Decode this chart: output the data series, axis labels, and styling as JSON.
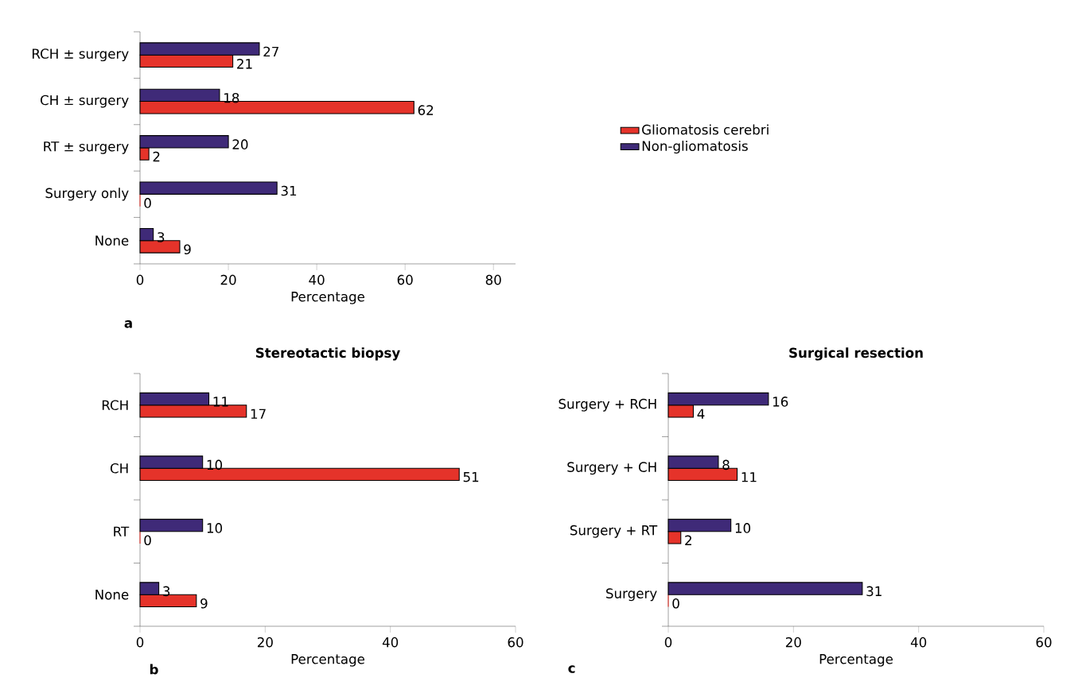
{
  "chart_data": [
    {
      "type": "bar",
      "orientation": "horizontal",
      "xlabel": "Percentage",
      "categories": [
        "RCH ± surgery",
        "CH ± surgery",
        "RT ± surgery",
        "Surgery only",
        "None"
      ],
      "series": [
        {
          "name": "Gliomatosis cerebri",
          "color": "#e5332a",
          "values": [
            21,
            62,
            2,
            0,
            9
          ]
        },
        {
          "name": "Non-gliomatosis",
          "color": "#3f2a78",
          "values": [
            27,
            18,
            20,
            31,
            3
          ]
        }
      ],
      "xlim": [
        0,
        85
      ],
      "xticks": [
        0,
        20,
        40,
        60,
        80
      ],
      "data_labels": true,
      "legend": "right",
      "annotations": [
        "a"
      ]
    },
    {
      "type": "bar",
      "orientation": "horizontal",
      "title": "Stereotactic biopsy",
      "xlabel": "Percentage",
      "categories": [
        "RCH",
        "CH",
        "RT",
        "None"
      ],
      "series": [
        {
          "color": "#e5332a",
          "values": [
            17,
            51,
            0,
            9
          ]
        },
        {
          "color": "#3f2a78",
          "values": [
            11,
            10,
            10,
            3
          ]
        }
      ],
      "xlim": [
        0,
        60
      ],
      "xticks": [
        0,
        20,
        40,
        60
      ],
      "data_labels": true,
      "annotations": [
        "b"
      ]
    },
    {
      "type": "bar",
      "orientation": "horizontal",
      "title": "Surgical resection",
      "xlabel": "Percentage",
      "categories": [
        "Surgery + RCH",
        "Surgery + CH",
        "Surgery + RT",
        "Surgery"
      ],
      "series": [
        {
          "color": "#e5332a",
          "values": [
            4,
            11,
            2,
            0
          ]
        },
        {
          "color": "#3f2a78",
          "values": [
            16,
            8,
            10,
            31
          ]
        }
      ],
      "xlim": [
        0,
        60
      ],
      "xticks": [
        0,
        20,
        40,
        60
      ],
      "data_labels": true,
      "annotations": [
        "c"
      ]
    }
  ]
}
